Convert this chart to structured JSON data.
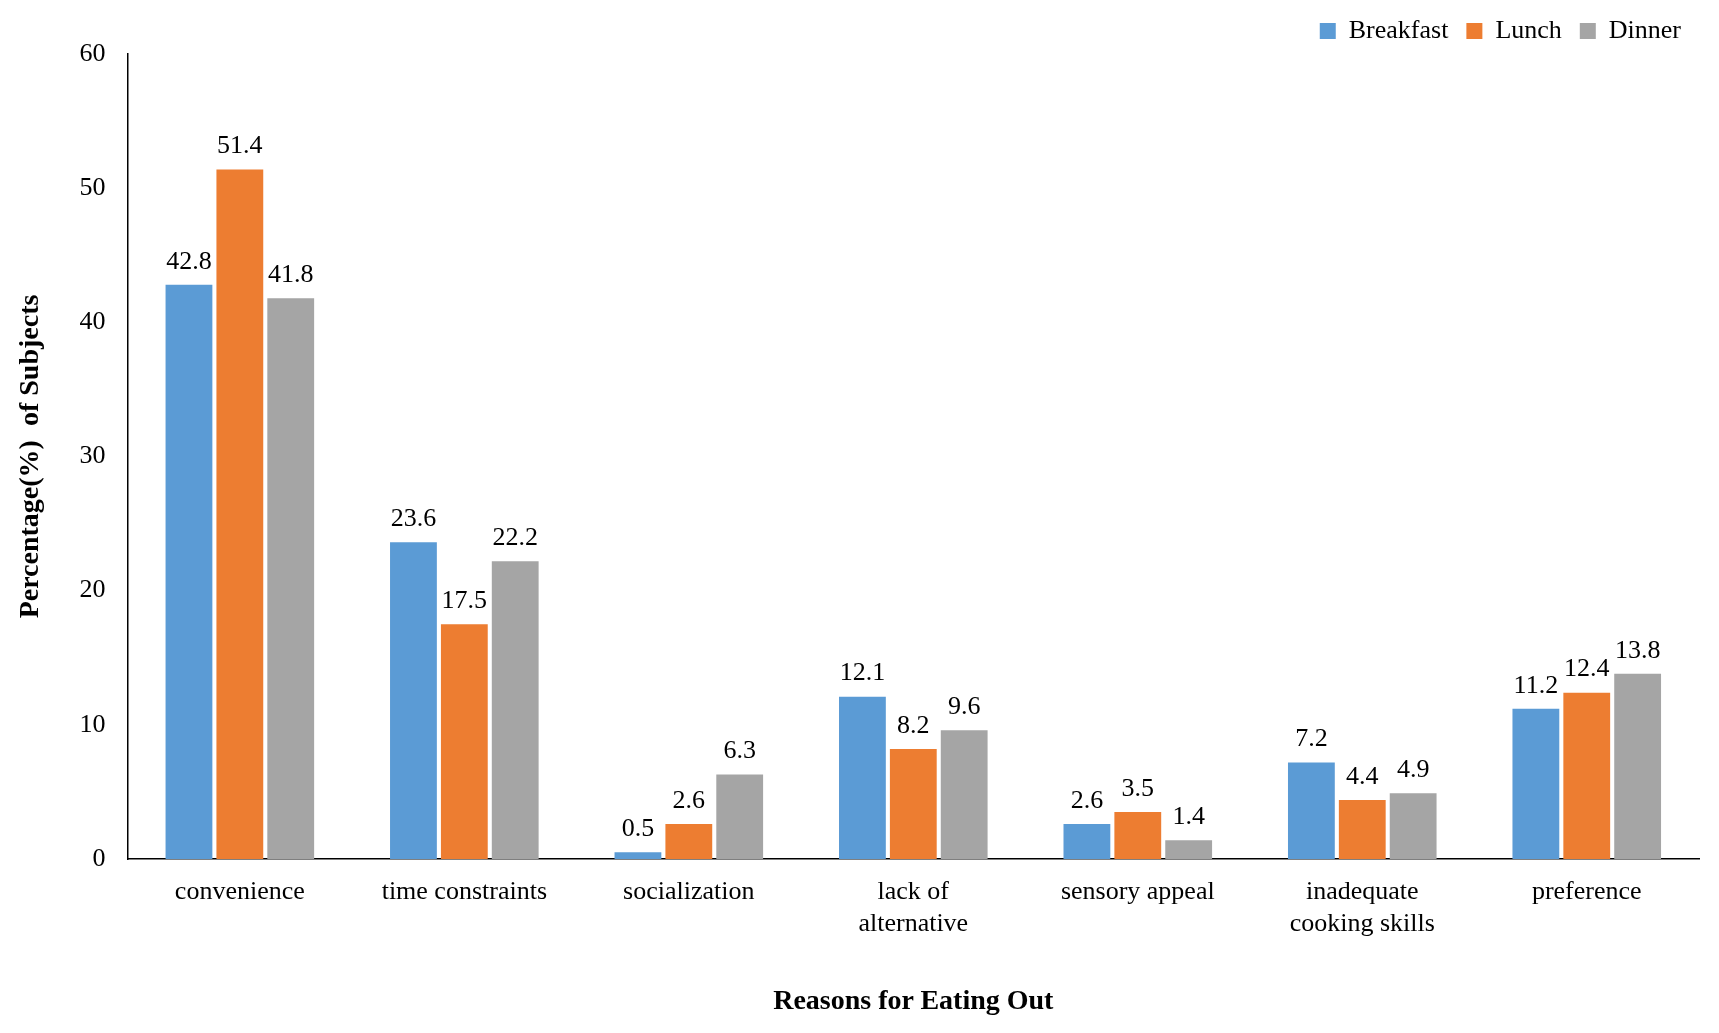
{
  "chart_data": {
    "type": "bar",
    "xlabel": "Reasons for Eating Out",
    "ylabel": "Percentage(%)  of Subjects",
    "categories": [
      "convenience",
      "time constraints",
      "socialization",
      "lack of alternative",
      "sensory appeal",
      "inadequate cooking skills",
      "preference"
    ],
    "series": [
      {
        "name": "Breakfast",
        "color": "#5b9bd5",
        "values": [
          42.8,
          23.6,
          0.5,
          12.1,
          2.6,
          7.2,
          11.2
        ]
      },
      {
        "name": "Lunch",
        "color": "#ed7d31",
        "values": [
          51.4,
          17.5,
          2.6,
          8.2,
          3.5,
          4.4,
          12.4
        ]
      },
      {
        "name": "Dinner",
        "color": "#a5a5a5",
        "values": [
          41.8,
          22.2,
          6.3,
          9.6,
          1.4,
          4.9,
          13.8
        ]
      }
    ],
    "ylim": [
      0,
      60
    ],
    "yticks": [
      0,
      10,
      20,
      30,
      40,
      50,
      60
    ],
    "grid": false,
    "legend": "top right",
    "data_labels": true
  }
}
